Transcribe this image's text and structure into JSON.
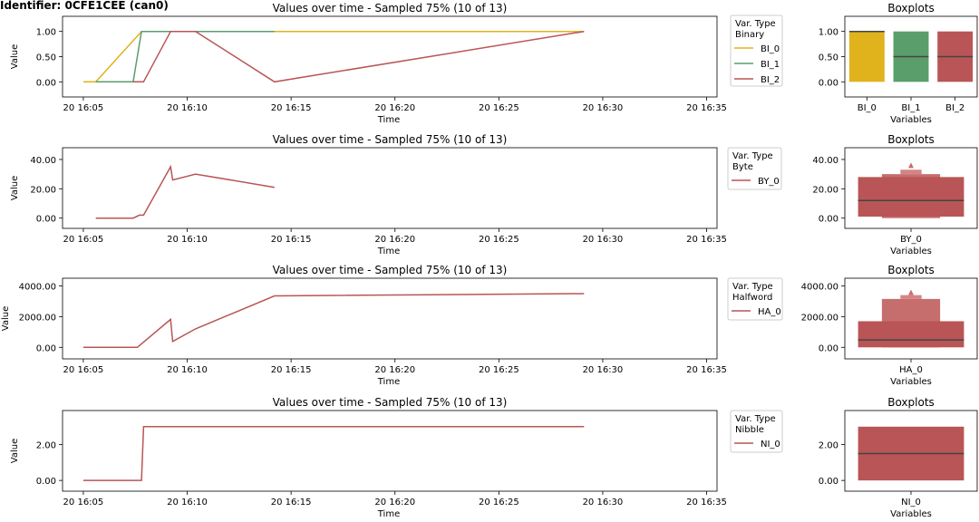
{
  "identifier": "Identifier: 0CFE1CEE (can0)",
  "x_ticks": [
    "20 16:05",
    "20 16:10",
    "20 16:15",
    "20 16:20",
    "20 16:25",
    "20 16:30",
    "20 16:35"
  ],
  "colors": {
    "yellow": "#e0b31d",
    "green": "#5a9e6b",
    "red": "#b95556",
    "red_light": "#c66d6e",
    "red_lighter": "#d38586"
  },
  "chart_data": [
    {
      "type": "line",
      "title": "Values over time - Sampled 75% (10 of 13)",
      "xlabel": "Time",
      "ylabel": "Value",
      "xlim": [
        "16:04",
        "16:35.5"
      ],
      "ylim": [
        -0.3,
        1.3
      ],
      "yticks": [
        "0.00",
        "0.50",
        "1.00"
      ],
      "legend": {
        "title": "Var. Type",
        "subtitle": "Binary",
        "placement": "right"
      },
      "series": [
        {
          "name": "BI_0",
          "color": "#e0b31d",
          "x": [
            "16:05",
            "16:05.6",
            "16:07.8",
            "16:10.4",
            "16:14.2",
            "16:29.1"
          ],
          "y": [
            0,
            0,
            1,
            1,
            1,
            1
          ]
        },
        {
          "name": "BI_1",
          "color": "#5a9e6b",
          "x": [
            "16:05.6",
            "16:07.4",
            "16:07.8",
            "16:10.4",
            "16:14.2"
          ],
          "y": [
            0,
            0,
            1,
            1,
            1
          ]
        },
        {
          "name": "BI_2",
          "color": "#b95556",
          "x": [
            "16:07.4",
            "16:07.9",
            "16:09.2",
            "16:10.4",
            "16:14.2",
            "16:29.1"
          ],
          "y": [
            0,
            0,
            1,
            1,
            0,
            1
          ]
        }
      ],
      "box": {
        "title": "Boxplots",
        "xlabel": "Variables",
        "ylim": [
          -0.3,
          1.3
        ],
        "yticks": [
          "0.00",
          "0.50",
          "1.00"
        ],
        "categories": [
          "BI_0",
          "BI_1",
          "BI_2"
        ],
        "boxes": [
          {
            "name": "BI_0",
            "color": "#e0b31d",
            "q1": 0,
            "median": 1,
            "q3": 1
          },
          {
            "name": "BI_1",
            "color": "#5a9e6b",
            "q1": 0,
            "median": 0.5,
            "q3": 1
          },
          {
            "name": "BI_2",
            "color": "#b95556",
            "q1": 0,
            "median": 0.5,
            "q3": 1
          }
        ]
      }
    },
    {
      "type": "line",
      "title": "Values over time - Sampled 75% (10 of 13)",
      "xlabel": "Time",
      "ylabel": "Value",
      "xlim": [
        "16:04",
        "16:35.5"
      ],
      "ylim": [
        -7,
        48
      ],
      "yticks": [
        "0.00",
        "20.00",
        "40.00"
      ],
      "legend": {
        "title": "Var. Type",
        "subtitle": "Byte",
        "placement": "right"
      },
      "series": [
        {
          "name": "BY_0",
          "color": "#b95556",
          "x": [
            "16:05.6",
            "16:07.4",
            "16:07.7",
            "16:07.9",
            "16:09.2",
            "16:09.3",
            "16:10.4",
            "16:14.2"
          ],
          "y": [
            0,
            0,
            2,
            2,
            35,
            26,
            30,
            21
          ]
        }
      ],
      "box": {
        "title": "Boxplots",
        "xlabel": "Variables",
        "ylim": [
          -7,
          48
        ],
        "yticks": [
          "0.00",
          "20.00",
          "40.00"
        ],
        "categories": [
          "BY_0"
        ],
        "boxes": [
          {
            "name": "BY_0",
            "color": "#b95556",
            "q1": 1,
            "median": 12,
            "q3": 28,
            "letters": [
              {
                "lo": 0,
                "hi": 30
              },
              {
                "lo": 30,
                "hi": 33
              }
            ],
            "outlier": 36
          }
        ]
      }
    },
    {
      "type": "line",
      "title": "Values over time - Sampled 75% (10 of 13)",
      "xlabel": "Time",
      "ylabel": "Value",
      "xlim": [
        "16:04",
        "16:35.5"
      ],
      "ylim": [
        -750,
        4500
      ],
      "yticks": [
        "0.00",
        "2000.00",
        "4000.00"
      ],
      "legend": {
        "title": "Var. Type",
        "subtitle": "Halfword",
        "placement": "right"
      },
      "series": [
        {
          "name": "HA_0",
          "color": "#b95556",
          "x": [
            "16:05",
            "16:07.6",
            "16:09.2",
            "16:09.3",
            "16:10.4",
            "16:14.2",
            "16:29.1"
          ],
          "y": [
            0,
            0,
            1820,
            380,
            1200,
            3350,
            3500
          ]
        }
      ],
      "box": {
        "title": "Boxplots",
        "xlabel": "Variables",
        "ylim": [
          -750,
          4500
        ],
        "yticks": [
          "0.00",
          "2000.00",
          "4000.00"
        ],
        "categories": [
          "HA_0"
        ],
        "boxes": [
          {
            "name": "HA_0",
            "color": "#b95556",
            "q1": 0,
            "median": 480,
            "q3": 1700,
            "letters": [
              {
                "lo": 0,
                "hi": 3150
              },
              {
                "lo": 3150,
                "hi": 3400
              }
            ],
            "outlier": 3580
          }
        ]
      }
    },
    {
      "type": "line",
      "title": "Values over time - Sampled 75% (10 of 13)",
      "xlabel": "Time",
      "ylabel": "Value",
      "xlim": [
        "16:04",
        "16:35.5"
      ],
      "ylim": [
        -0.6,
        3.9
      ],
      "yticks": [
        "0.00",
        "2.00"
      ],
      "legend": {
        "title": "Var. Type",
        "subtitle": "Nibble",
        "placement": "right"
      },
      "series": [
        {
          "name": "NI_0",
          "color": "#b95556",
          "x": [
            "16:05",
            "16:07.8",
            "16:07.9",
            "16:29.1"
          ],
          "y": [
            0,
            0,
            3,
            3
          ]
        }
      ],
      "box": {
        "title": "Boxplots",
        "xlabel": "Variables",
        "ylim": [
          -0.6,
          3.9
        ],
        "yticks": [
          "0.00",
          "2.00"
        ],
        "categories": [
          "NI_0"
        ],
        "boxes": [
          {
            "name": "NI_0",
            "color": "#b95556",
            "q1": 0,
            "median": 1.5,
            "q3": 3
          }
        ]
      }
    }
  ]
}
